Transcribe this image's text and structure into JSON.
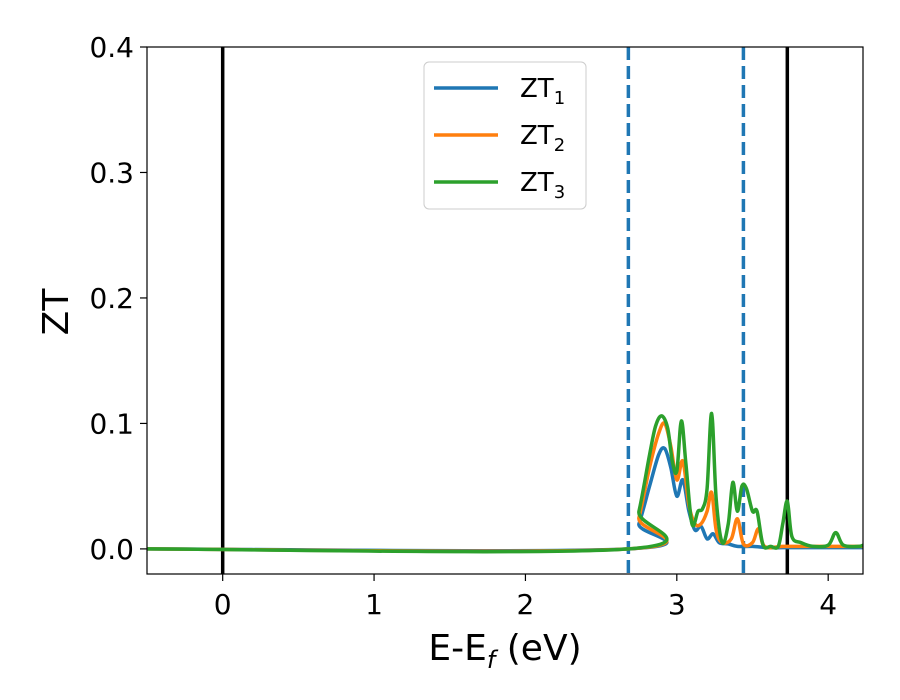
{
  "chart_data": {
    "type": "line",
    "xlabel": "E-E",
    "xlabel_sub": "f",
    "xlabel_unit": " (eV)",
    "ylabel": "ZT",
    "xlim": [
      -0.5,
      4.23
    ],
    "ylim": [
      -0.02,
      0.4
    ],
    "xticks": [
      0,
      1,
      2,
      3,
      4
    ],
    "xtick_labels": [
      "0",
      "1",
      "2",
      "3",
      "4"
    ],
    "yticks": [
      0.0,
      0.1,
      0.2,
      0.3,
      0.4
    ],
    "ytick_labels": [
      "0.0",
      "0.1",
      "0.2",
      "0.3",
      "0.4"
    ],
    "grid": false,
    "legend_position": "upper-center",
    "vertical_lines": [
      {
        "x": 0.0,
        "style": "solid",
        "color": "#000000"
      },
      {
        "x": 3.73,
        "style": "solid",
        "color": "#000000"
      },
      {
        "x": 2.68,
        "style": "dashed",
        "color": "#1f77b4"
      },
      {
        "x": 3.44,
        "style": "dashed",
        "color": "#1f77b4"
      }
    ],
    "series": [
      {
        "name": "ZT",
        "name_sub": "1",
        "color": "#1f77b4",
        "x": [
          -0.5,
          2.68,
          2.75,
          2.82,
          2.88,
          2.92,
          2.96,
          3.0,
          3.04,
          3.08,
          3.12,
          3.16,
          3.2,
          3.24,
          3.28,
          3.34,
          3.4,
          3.5,
          3.6,
          3.7,
          3.8,
          4.23
        ],
        "y": [
          0.0,
          0.0,
          0.02,
          0.05,
          0.075,
          0.08,
          0.065,
          0.042,
          0.055,
          0.03,
          0.015,
          0.018,
          0.008,
          0.012,
          0.005,
          0.004,
          0.002,
          0.002,
          0.001,
          0.001,
          0.001,
          0.001
        ]
      },
      {
        "name": "ZT",
        "name_sub": "2",
        "color": "#ff7f0e",
        "x": [
          -0.5,
          2.68,
          2.75,
          2.82,
          2.88,
          2.92,
          2.96,
          3.0,
          3.04,
          3.08,
          3.12,
          3.16,
          3.2,
          3.23,
          3.26,
          3.3,
          3.36,
          3.4,
          3.44,
          3.5,
          3.54,
          3.58,
          3.7,
          3.8,
          4.23
        ],
        "y": [
          0.0,
          0.0,
          0.025,
          0.065,
          0.092,
          0.1,
          0.082,
          0.055,
          0.07,
          0.035,
          0.02,
          0.02,
          0.03,
          0.045,
          0.015,
          0.005,
          0.008,
          0.024,
          0.004,
          0.005,
          0.016,
          0.002,
          0.002,
          0.002,
          0.002
        ]
      },
      {
        "name": "ZT",
        "name_sub": "3",
        "color": "#2ca02c",
        "x": [
          -0.5,
          2.68,
          2.75,
          2.82,
          2.86,
          2.9,
          2.94,
          2.97,
          3.0,
          3.03,
          3.06,
          3.1,
          3.14,
          3.17,
          3.2,
          3.23,
          3.26,
          3.3,
          3.34,
          3.37,
          3.4,
          3.43,
          3.46,
          3.5,
          3.53,
          3.57,
          3.62,
          3.67,
          3.7,
          3.73,
          3.76,
          3.82,
          3.9,
          4.0,
          4.05,
          4.1,
          4.2,
          4.23
        ],
        "y": [
          0.0,
          0.0,
          0.03,
          0.075,
          0.098,
          0.106,
          0.096,
          0.07,
          0.062,
          0.102,
          0.068,
          0.02,
          0.03,
          0.032,
          0.048,
          0.108,
          0.04,
          0.005,
          0.02,
          0.053,
          0.03,
          0.05,
          0.048,
          0.03,
          0.03,
          0.003,
          0.002,
          0.002,
          0.02,
          0.038,
          0.01,
          0.005,
          0.002,
          0.003,
          0.013,
          0.003,
          0.002,
          0.003
        ]
      }
    ]
  }
}
